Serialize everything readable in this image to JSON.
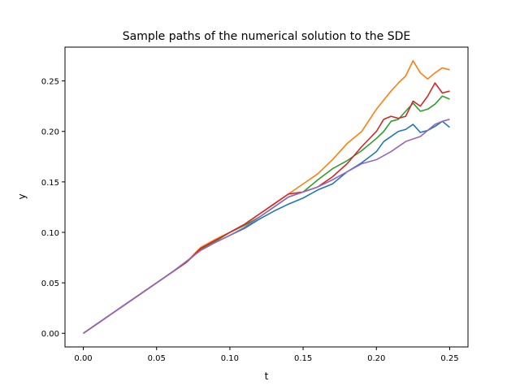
{
  "chart_data": {
    "type": "line",
    "title": "Sample paths of the numerical solution to the SDE",
    "xlabel": "t",
    "ylabel": "y",
    "xlim": [
      -0.0125,
      0.2625
    ],
    "ylim": [
      -0.0135,
      0.2835
    ],
    "xticks": [
      0.0,
      0.05,
      0.1,
      0.15,
      0.2,
      0.25
    ],
    "xtick_labels": [
      "0.00",
      "0.05",
      "0.10",
      "0.15",
      "0.20",
      "0.25"
    ],
    "yticks": [
      0.0,
      0.05,
      0.1,
      0.15,
      0.2,
      0.25
    ],
    "ytick_labels": [
      "0.00",
      "0.05",
      "0.10",
      "0.15",
      "0.20",
      "0.25"
    ],
    "grid": false,
    "series": [
      {
        "color": "#1f77b4",
        "x": [
          0,
          0.01,
          0.02,
          0.03,
          0.04,
          0.05,
          0.06,
          0.07,
          0.08,
          0.09,
          0.1,
          0.11,
          0.12,
          0.13,
          0.14,
          0.15,
          0.16,
          0.17,
          0.18,
          0.19,
          0.2,
          0.205,
          0.21,
          0.215,
          0.22,
          0.225,
          0.23,
          0.235,
          0.24,
          0.245,
          0.25
        ],
        "y": [
          0,
          0.01,
          0.02,
          0.03,
          0.04,
          0.05,
          0.06,
          0.07,
          0.083,
          0.09,
          0.097,
          0.104,
          0.113,
          0.121,
          0.128,
          0.134,
          0.142,
          0.148,
          0.16,
          0.169,
          0.18,
          0.19,
          0.195,
          0.2,
          0.202,
          0.207,
          0.199,
          0.201,
          0.205,
          0.21,
          0.204
        ]
      },
      {
        "color": "#ff7f0e",
        "x": [
          0,
          0.01,
          0.02,
          0.03,
          0.04,
          0.05,
          0.06,
          0.07,
          0.08,
          0.09,
          0.1,
          0.11,
          0.12,
          0.13,
          0.14,
          0.15,
          0.16,
          0.17,
          0.18,
          0.19,
          0.2,
          0.21,
          0.215,
          0.22,
          0.225,
          0.23,
          0.235,
          0.24,
          0.245,
          0.25
        ],
        "y": [
          0,
          0.01,
          0.02,
          0.03,
          0.04,
          0.05,
          0.06,
          0.07,
          0.085,
          0.093,
          0.1,
          0.108,
          0.118,
          0.128,
          0.138,
          0.148,
          0.158,
          0.172,
          0.188,
          0.2,
          0.222,
          0.24,
          0.248,
          0.255,
          0.27,
          0.258,
          0.252,
          0.258,
          0.263,
          0.261
        ]
      },
      {
        "color": "#2ca02c",
        "x": [
          0,
          0.01,
          0.02,
          0.03,
          0.04,
          0.05,
          0.06,
          0.07,
          0.08,
          0.09,
          0.1,
          0.11,
          0.12,
          0.13,
          0.14,
          0.15,
          0.16,
          0.17,
          0.18,
          0.19,
          0.2,
          0.205,
          0.21,
          0.215,
          0.22,
          0.225,
          0.23,
          0.235,
          0.24,
          0.245,
          0.25
        ],
        "y": [
          0,
          0.01,
          0.02,
          0.03,
          0.04,
          0.05,
          0.06,
          0.07,
          0.083,
          0.091,
          0.1,
          0.107,
          0.115,
          0.125,
          0.135,
          0.14,
          0.152,
          0.163,
          0.171,
          0.181,
          0.193,
          0.2,
          0.21,
          0.212,
          0.22,
          0.228,
          0.22,
          0.222,
          0.227,
          0.235,
          0.232
        ]
      },
      {
        "color": "#d62728",
        "x": [
          0,
          0.01,
          0.02,
          0.03,
          0.04,
          0.05,
          0.06,
          0.07,
          0.08,
          0.09,
          0.1,
          0.11,
          0.12,
          0.13,
          0.14,
          0.15,
          0.16,
          0.17,
          0.18,
          0.19,
          0.2,
          0.205,
          0.21,
          0.215,
          0.22,
          0.225,
          0.23,
          0.235,
          0.24,
          0.245,
          0.25
        ],
        "y": [
          0,
          0.01,
          0.02,
          0.03,
          0.04,
          0.05,
          0.06,
          0.07,
          0.084,
          0.092,
          0.1,
          0.108,
          0.118,
          0.128,
          0.138,
          0.14,
          0.145,
          0.155,
          0.168,
          0.185,
          0.2,
          0.212,
          0.215,
          0.213,
          0.215,
          0.23,
          0.225,
          0.235,
          0.248,
          0.238,
          0.24
        ]
      },
      {
        "color": "#9467bd",
        "x": [
          0,
          0.01,
          0.02,
          0.03,
          0.04,
          0.05,
          0.06,
          0.07,
          0.08,
          0.09,
          0.1,
          0.11,
          0.12,
          0.13,
          0.14,
          0.15,
          0.16,
          0.17,
          0.18,
          0.19,
          0.2,
          0.21,
          0.22,
          0.23,
          0.24,
          0.245,
          0.25
        ],
        "y": [
          0,
          0.01,
          0.02,
          0.03,
          0.04,
          0.05,
          0.06,
          0.071,
          0.082,
          0.09,
          0.097,
          0.105,
          0.115,
          0.125,
          0.135,
          0.14,
          0.145,
          0.152,
          0.16,
          0.168,
          0.172,
          0.18,
          0.19,
          0.195,
          0.207,
          0.21,
          0.212
        ]
      }
    ]
  }
}
